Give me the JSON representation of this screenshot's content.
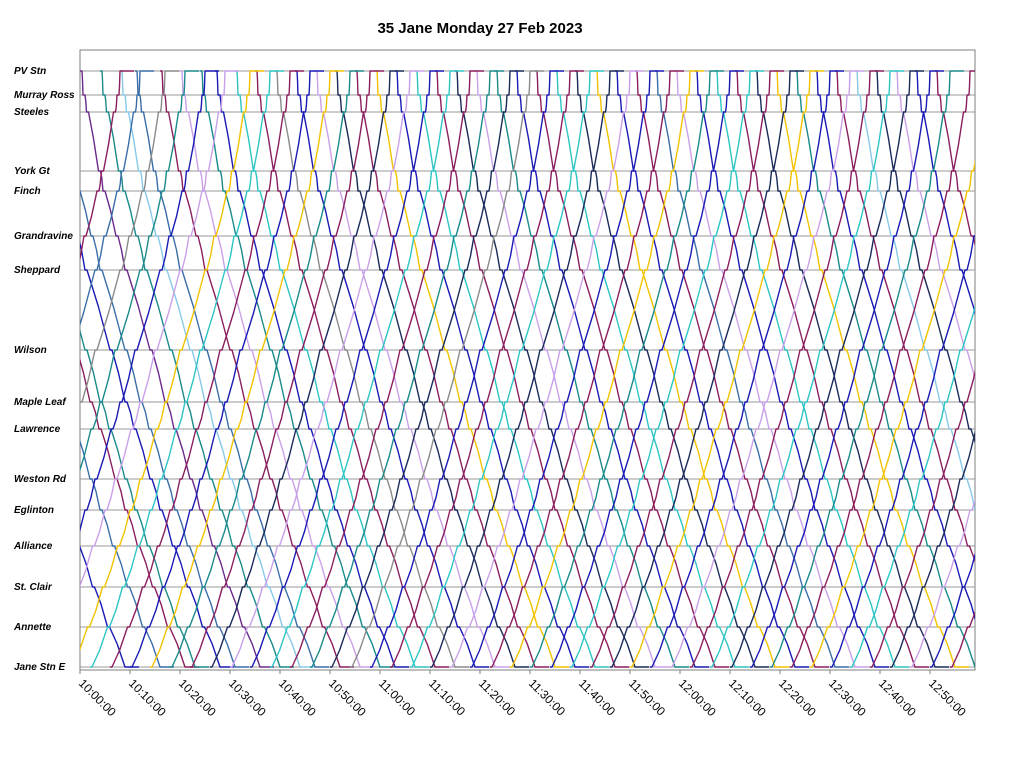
{
  "chart_data": {
    "type": "line",
    "title": "35 Jane Monday 27 Feb 2023",
    "xlabel": "",
    "ylabel": "",
    "x_range": [
      "10:00:00",
      "12:58:00"
    ],
    "x_ticks": [
      "10:00:00",
      "10:10:00",
      "10:20:00",
      "10:30:00",
      "10:40:00",
      "10:50:00",
      "11:00:00",
      "11:10:00",
      "11:20:00",
      "11:30:00",
      "11:40:00",
      "11:50:00",
      "12:00:00",
      "12:10:00",
      "12:20:00",
      "12:30:00",
      "12:40:00",
      "12:50:00"
    ],
    "stops": [
      "PV Stn",
      "Murray Ross",
      "Steeles",
      "York Gt",
      "Finch",
      "Grandravine",
      "Sheppard",
      "Wilson",
      "Maple Leaf",
      "Lawrence",
      "Weston Rd",
      "Eglinton",
      "Alliance",
      "St. Clair",
      "Annette",
      "Jane Stn E"
    ],
    "grid": true,
    "trip_duration_min": 36,
    "series": [
      {
        "dir": "south",
        "start": "09:33",
        "color": "#1a1ab4"
      },
      {
        "dir": "south",
        "start": "09:40",
        "color": "#3a6ea8"
      },
      {
        "dir": "south",
        "start": "09:45",
        "color": "#8b1e5e"
      },
      {
        "dir": "south",
        "start": "09:47",
        "color": "#1a8a8a"
      },
      {
        "dir": "south",
        "start": "09:52",
        "color": "#1a1ab4"
      },
      {
        "dir": "south",
        "start": "09:55",
        "color": "#3a6ea8"
      },
      {
        "dir": "south",
        "start": "10:00",
        "color": "#6b2a8a"
      },
      {
        "dir": "south",
        "start": "10:04",
        "color": "#1a8a8a"
      },
      {
        "dir": "south",
        "start": "10:08",
        "color": "#87c8e8"
      },
      {
        "dir": "south",
        "start": "10:11",
        "color": "#3a6ea8"
      },
      {
        "dir": "south",
        "start": "10:16",
        "color": "#8b1e5e"
      },
      {
        "dir": "south",
        "start": "10:20",
        "color": "#c9a0e8"
      },
      {
        "dir": "south",
        "start": "10:24",
        "color": "#1a8a8a"
      },
      {
        "dir": "south",
        "start": "10:27",
        "color": "#1a1ab4"
      },
      {
        "dir": "south",
        "start": "10:31",
        "color": "#2ec4c4"
      },
      {
        "dir": "south",
        "start": "10:35",
        "color": "#8b1e5e"
      },
      {
        "dir": "south",
        "start": "10:39",
        "color": "#8a8a8a"
      },
      {
        "dir": "south",
        "start": "10:43",
        "color": "#1a1ab4"
      },
      {
        "dir": "south",
        "start": "10:47",
        "color": "#c9a0e8"
      },
      {
        "dir": "south",
        "start": "10:51",
        "color": "#1a2a5a"
      },
      {
        "dir": "south",
        "start": "10:55",
        "color": "#8b1e5e"
      },
      {
        "dir": "south",
        "start": "10:59",
        "color": "#f2c200"
      },
      {
        "dir": "south",
        "start": "11:03",
        "color": "#1a1ab4"
      },
      {
        "dir": "south",
        "start": "11:07",
        "color": "#2ec4c4"
      },
      {
        "dir": "south",
        "start": "11:11",
        "color": "#8b1e5e"
      },
      {
        "dir": "south",
        "start": "11:15",
        "color": "#1a2a5a"
      },
      {
        "dir": "south",
        "start": "11:19",
        "color": "#c9a0e8"
      },
      {
        "dir": "south",
        "start": "11:23",
        "color": "#1a8a8a"
      },
      {
        "dir": "south",
        "start": "11:27",
        "color": "#1a1ab4"
      },
      {
        "dir": "south",
        "start": "11:31",
        "color": "#8b1e5e"
      },
      {
        "dir": "south",
        "start": "11:35",
        "color": "#2ec4c4"
      },
      {
        "dir": "south",
        "start": "11:39",
        "color": "#1a2a5a"
      },
      {
        "dir": "south",
        "start": "11:43",
        "color": "#f2c200"
      },
      {
        "dir": "south",
        "start": "11:47",
        "color": "#1a1ab4"
      },
      {
        "dir": "south",
        "start": "11:51",
        "color": "#8b1e5e"
      },
      {
        "dir": "south",
        "start": "11:55",
        "color": "#3a6ea8"
      },
      {
        "dir": "south",
        "start": "11:59",
        "color": "#c9a0e8"
      },
      {
        "dir": "south",
        "start": "12:03",
        "color": "#1a1ab4"
      },
      {
        "dir": "south",
        "start": "12:07",
        "color": "#2ec4c4"
      },
      {
        "dir": "south",
        "start": "12:11",
        "color": "#8b1e5e"
      },
      {
        "dir": "south",
        "start": "12:15",
        "color": "#1a2a5a"
      },
      {
        "dir": "south",
        "start": "12:19",
        "color": "#f2c200"
      },
      {
        "dir": "south",
        "start": "12:23",
        "color": "#1a8a8a"
      },
      {
        "dir": "south",
        "start": "12:27",
        "color": "#1a1ab4"
      },
      {
        "dir": "south",
        "start": "12:31",
        "color": "#8b1e5e"
      },
      {
        "dir": "south",
        "start": "12:35",
        "color": "#87c8e8"
      },
      {
        "dir": "south",
        "start": "12:39",
        "color": "#1a2a5a"
      },
      {
        "dir": "south",
        "start": "12:43",
        "color": "#c9a0e8"
      },
      {
        "dir": "south",
        "start": "12:47",
        "color": "#1a1ab4"
      },
      {
        "dir": "south",
        "start": "12:51",
        "color": "#8b1e5e"
      },
      {
        "dir": "north",
        "start": "09:32",
        "color": "#8b1e5e"
      },
      {
        "dir": "north",
        "start": "09:36",
        "color": "#3a6ea8"
      },
      {
        "dir": "north",
        "start": "09:41",
        "color": "#8a8a8a"
      },
      {
        "dir": "north",
        "start": "09:45",
        "color": "#1a8a8a"
      },
      {
        "dir": "north",
        "start": "09:49",
        "color": "#1a1ab4"
      },
      {
        "dir": "north",
        "start": "09:53",
        "color": "#c9a0e8"
      },
      {
        "dir": "north",
        "start": "09:58",
        "color": "#f2c200"
      },
      {
        "dir": "north",
        "start": "10:02",
        "color": "#2ec4c4"
      },
      {
        "dir": "north",
        "start": "10:06",
        "color": "#8b1e5e"
      },
      {
        "dir": "north",
        "start": "10:10",
        "color": "#1a1ab4"
      },
      {
        "dir": "north",
        "start": "10:14",
        "color": "#f2c200"
      },
      {
        "dir": "north",
        "start": "10:18",
        "color": "#1a8a8a"
      },
      {
        "dir": "north",
        "start": "10:22",
        "color": "#8b1e5e"
      },
      {
        "dir": "north",
        "start": "10:26",
        "color": "#1a2a5a"
      },
      {
        "dir": "north",
        "start": "10:30",
        "color": "#c9a0e8"
      },
      {
        "dir": "north",
        "start": "10:34",
        "color": "#1a1ab4"
      },
      {
        "dir": "north",
        "start": "10:38",
        "color": "#2ec4c4"
      },
      {
        "dir": "north",
        "start": "10:42",
        "color": "#8b1e5e"
      },
      {
        "dir": "north",
        "start": "10:46",
        "color": "#1a8a8a"
      },
      {
        "dir": "north",
        "start": "10:50",
        "color": "#1a2a5a"
      },
      {
        "dir": "north",
        "start": "10:54",
        "color": "#8a8a8a"
      },
      {
        "dir": "north",
        "start": "10:58",
        "color": "#1a1ab4"
      },
      {
        "dir": "north",
        "start": "11:02",
        "color": "#8b1e5e"
      },
      {
        "dir": "north",
        "start": "11:06",
        "color": "#2ec4c4"
      },
      {
        "dir": "north",
        "start": "11:10",
        "color": "#1a2a5a"
      },
      {
        "dir": "north",
        "start": "11:14",
        "color": "#c9a0e8"
      },
      {
        "dir": "north",
        "start": "11:18",
        "color": "#1a1ab4"
      },
      {
        "dir": "north",
        "start": "11:22",
        "color": "#8b1e5e"
      },
      {
        "dir": "north",
        "start": "11:26",
        "color": "#f2c200"
      },
      {
        "dir": "north",
        "start": "11:30",
        "color": "#1a8a8a"
      },
      {
        "dir": "north",
        "start": "11:34",
        "color": "#1a1ab4"
      },
      {
        "dir": "north",
        "start": "11:38",
        "color": "#2ec4c4"
      },
      {
        "dir": "north",
        "start": "11:42",
        "color": "#8b1e5e"
      },
      {
        "dir": "north",
        "start": "11:46",
        "color": "#1a2a5a"
      },
      {
        "dir": "north",
        "start": "11:50",
        "color": "#f2c200"
      },
      {
        "dir": "north",
        "start": "11:54",
        "color": "#1a1ab4"
      },
      {
        "dir": "north",
        "start": "11:58",
        "color": "#c9a0e8"
      },
      {
        "dir": "north",
        "start": "12:02",
        "color": "#8b1e5e"
      },
      {
        "dir": "north",
        "start": "12:06",
        "color": "#2ec4c4"
      },
      {
        "dir": "north",
        "start": "12:10",
        "color": "#1a2a5a"
      },
      {
        "dir": "north",
        "start": "12:14",
        "color": "#1a1ab4"
      },
      {
        "dir": "north",
        "start": "12:18",
        "color": "#1a8a8a"
      },
      {
        "dir": "north",
        "start": "12:22",
        "color": "#8b1e5e"
      },
      {
        "dir": "north",
        "start": "12:26",
        "color": "#f2c200"
      },
      {
        "dir": "north",
        "start": "12:30",
        "color": "#1a1ab4"
      },
      {
        "dir": "north",
        "start": "12:34",
        "color": "#2ec4c4"
      },
      {
        "dir": "north",
        "start": "12:38",
        "color": "#8b1e5e"
      },
      {
        "dir": "north",
        "start": "12:42",
        "color": "#1a2a5a"
      },
      {
        "dir": "north",
        "start": "12:46",
        "color": "#c9a0e8"
      },
      {
        "dir": "north",
        "start": "12:50",
        "color": "#1a1ab4"
      },
      {
        "dir": "north",
        "start": "12:54",
        "color": "#8b1e5e"
      }
    ]
  }
}
